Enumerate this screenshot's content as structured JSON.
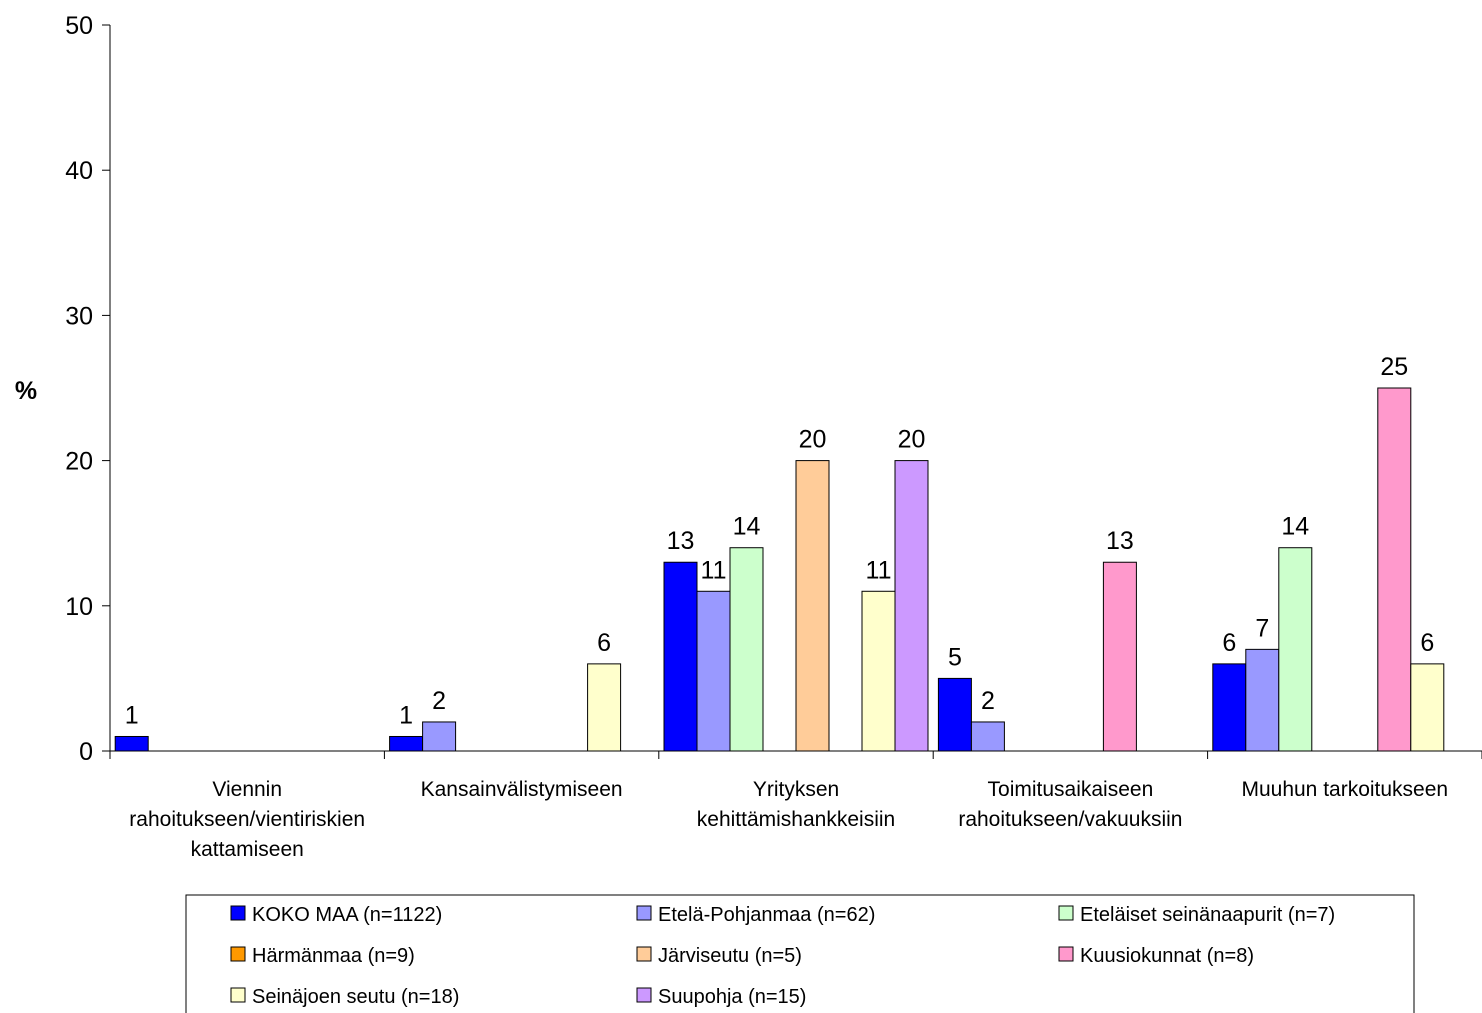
{
  "chart_data": {
    "type": "bar",
    "title": "",
    "xlabel": "",
    "ylabel": "%",
    "ylim": [
      0,
      50
    ],
    "yticks": [
      "0",
      "10",
      "20",
      "30",
      "40",
      "50"
    ],
    "grid": false,
    "legend_position": "bottom",
    "categories": [
      [
        "Viennin",
        "rahoitukseen/vientiriskien",
        "kattamiseen"
      ],
      [
        "Kansainvälistymiseen"
      ],
      [
        "Yrityksen",
        "kehittämishankkeisiin"
      ],
      [
        "Toimitusaikaiseen",
        "rahoitukseen/vakuuksiin"
      ],
      [
        "Muuhun tarkoitukseen"
      ]
    ],
    "series": [
      {
        "name": "KOKO MAA (n=1122)",
        "color": "#0000ff",
        "values": [
          1,
          1,
          13,
          5,
          6
        ]
      },
      {
        "name": "Etelä-Pohjanmaa (n=62)",
        "color": "#9999ff",
        "values": [
          null,
          2,
          11,
          2,
          7
        ]
      },
      {
        "name": "Eteläiset seinänaapurit (n=7)",
        "color": "#ccffcc",
        "values": [
          null,
          null,
          14,
          null,
          14
        ]
      },
      {
        "name": "Härmänmaa (n=9)",
        "color": "#ff9900",
        "values": [
          null,
          null,
          null,
          null,
          null
        ]
      },
      {
        "name": "Järviseutu (n=5)",
        "color": "#ffcc99",
        "values": [
          null,
          null,
          20,
          null,
          null
        ]
      },
      {
        "name": "Kuusiokunnat (n=8)",
        "color": "#ff99cc",
        "values": [
          null,
          null,
          null,
          13,
          25
        ]
      },
      {
        "name": "Seinäjoen seutu (n=18)",
        "color": "#ffffcc",
        "values": [
          null,
          6,
          11,
          null,
          6
        ]
      },
      {
        "name": "Suupohja (n=15)",
        "color": "#cc99ff",
        "values": [
          null,
          null,
          20,
          null,
          null
        ]
      }
    ]
  }
}
